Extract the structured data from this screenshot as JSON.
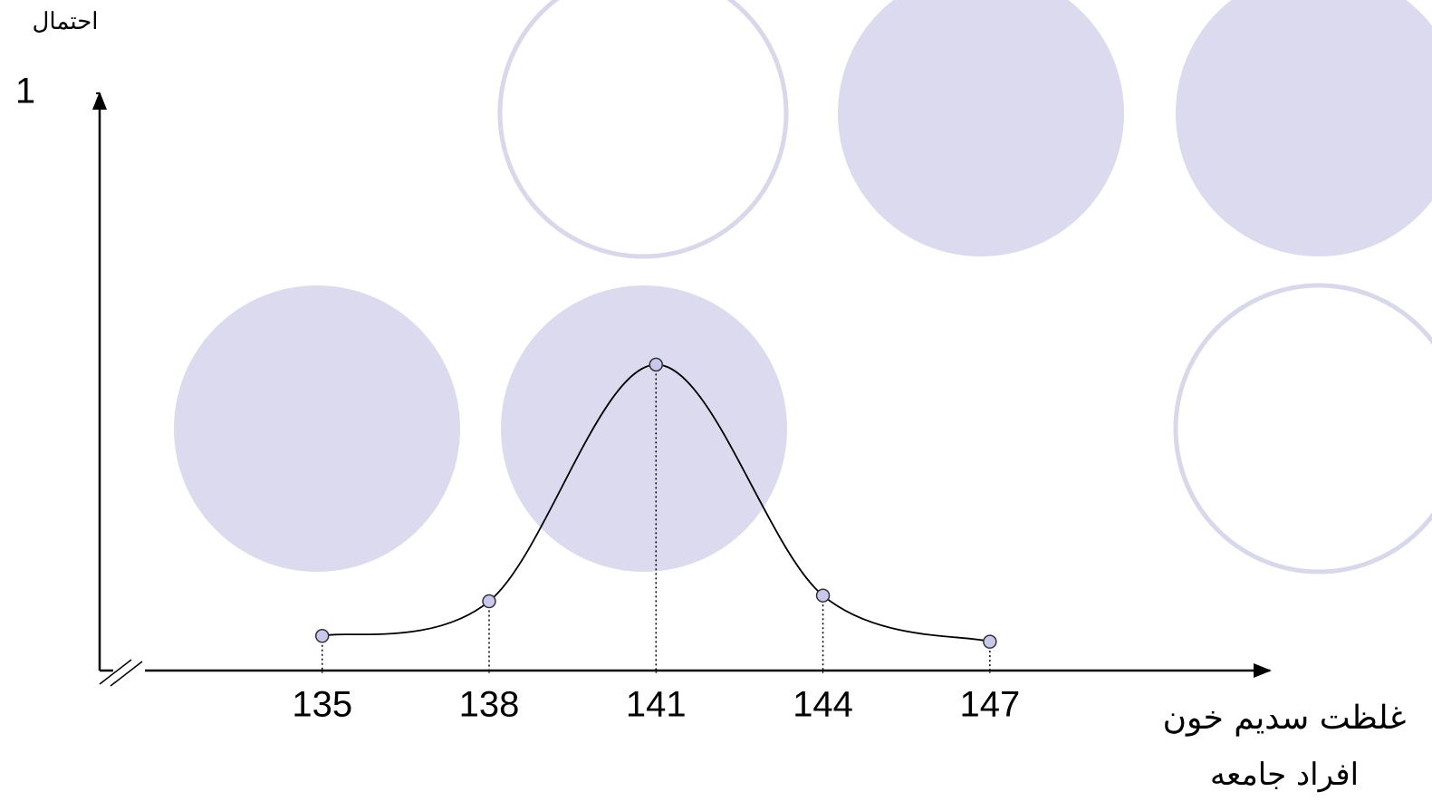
{
  "chart_data": {
    "type": "line",
    "y_label": "احتمال",
    "x_label": [
      "غلظت سدیم خون",
      "افراد جامعه"
    ],
    "x": [
      135,
      138,
      141,
      144,
      147
    ],
    "values": [
      0.06,
      0.12,
      0.53,
      0.13,
      0.05
    ],
    "xlim": [
      131,
      152
    ],
    "ylim": [
      0,
      1
    ],
    "xticks": [
      135,
      138,
      141,
      144,
      147
    ],
    "yticks": [
      1
    ],
    "color": "#000000",
    "marker_color": "#c8c8ee"
  }
}
